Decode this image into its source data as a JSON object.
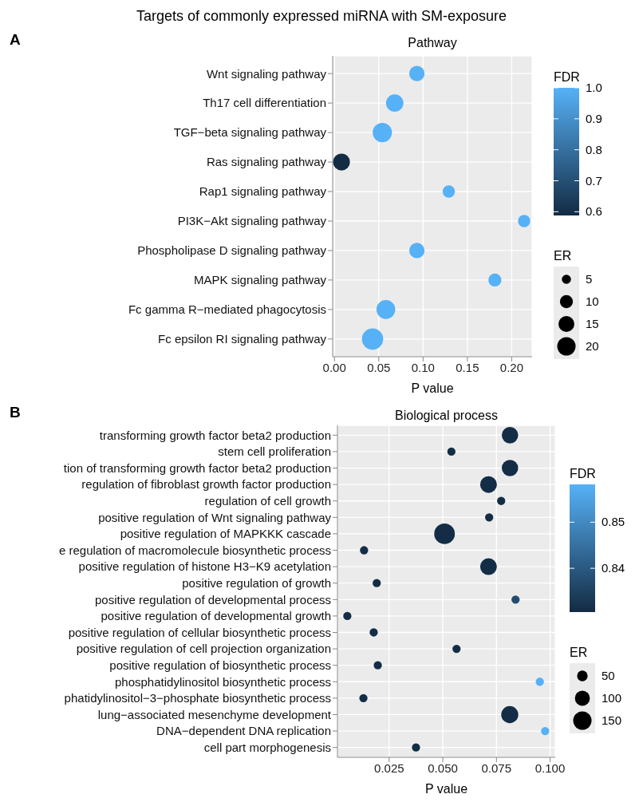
{
  "chart_data": [
    {
      "type": "bubble",
      "title": "Targets of commonly expressed miRNA with SM-exposure",
      "subtitle": "Pathway",
      "annotations": [
        "A"
      ],
      "xlabel": "P value",
      "orientation": "horizontal",
      "categories": [
        "Wnt signaling pathway",
        "Th17 cell differentiation",
        "TGF−beta signaling pathway",
        "Ras signaling pathway",
        "Rap1 signaling pathway",
        "PI3K−Akt signaling pathway",
        "Phospholipase D signaling pathway",
        "MAPK signaling pathway",
        "Fc gamma R−mediated phagocytosis",
        "Fc epsilon RI signaling pathway"
      ],
      "series": [
        {
          "values": [
            0.093,
            0.068,
            0.054,
            0.008,
            0.129,
            0.214,
            0.093,
            0.181,
            0.058,
            0.043
          ],
          "sizes": [
            14,
            18,
            22,
            17,
            9,
            9,
            14,
            10,
            21,
            27
          ],
          "cvalues": [
            1.0,
            1.0,
            1.0,
            0.59,
            1.0,
            1.0,
            1.0,
            1.0,
            1.0,
            1.0
          ]
        }
      ],
      "xlim": [
        -0.002,
        0.223
      ],
      "xticks": [
        {
          "value": 0,
          "label": "0.00"
        },
        0.05,
        {
          "value": 0.1,
          "label": "0.10"
        },
        0.15,
        {
          "value": 0.2,
          "label": "0.20"
        }
      ],
      "clabel": "FDR",
      "clim": [
        0.588,
        1.0
      ],
      "cticks": [
        {
          "value": 1.0,
          "label": "1.0"
        },
        0.9,
        0.8,
        0.7,
        0.6
      ],
      "legend_title": "ER",
      "size_legend": [
        5,
        10,
        15,
        20
      ],
      "grid": true
    },
    {
      "type": "bubble",
      "title": "Biological process",
      "annotations": [
        "B"
      ],
      "xlabel": "P value",
      "orientation": "horizontal",
      "categories": [
        "transforming growth factor beta2 production",
        "stem cell proliferation",
        "tion of transforming growth factor beta2 production",
        "regulation of fibroblast growth factor production",
        "regulation of cell growth",
        "positive regulation of Wnt signaling pathway",
        "positive regulation of MAPKKK cascade",
        "e regulation of macromolecule biosynthetic process",
        "positive regulation of histone H3−K9 acetylation",
        "positive regulation of growth",
        "positive regulation of developmental process",
        "positive regulation of developmental growth",
        "positive regulation of cellular biosynthetic process",
        "positive regulation of cell projection organization",
        "positive regulation of biosynthetic process",
        "phosphatidylinositol biosynthetic process",
        "phatidylinositol−3−phosphate biosynthetic process",
        "lung−associated mesenchyme development",
        "DNA−dependent DNA replication",
        "cell part morphogenesis"
      ],
      "series": [
        {
          "values": [
            0.0813,
            0.054,
            0.0813,
            0.0713,
            0.0772,
            0.0716,
            0.0508,
            0.0133,
            0.0713,
            0.0192,
            0.0839,
            0.0055,
            0.0178,
            0.0564,
            0.0197,
            0.0952,
            0.013,
            0.0812,
            0.0977,
            0.0375
          ],
          "sizes": [
            120,
            30,
            120,
            125,
            30,
            30,
            190,
            30,
            125,
            30,
            30,
            30,
            30,
            30,
            30,
            30,
            30,
            130,
            30,
            30
          ],
          "cvalues": [
            0.831,
            0.831,
            0.831,
            0.831,
            0.831,
            0.831,
            0.831,
            0.831,
            0.831,
            0.831,
            0.8374,
            0.831,
            0.831,
            0.831,
            0.831,
            0.858,
            0.831,
            0.831,
            0.858,
            0.831
          ]
        }
      ],
      "xlim": [
        0.0009,
        0.1024
      ],
      "xticks": [
        0.025,
        {
          "value": 0.05,
          "label": "0.050"
        },
        0.075,
        {
          "value": 0.1,
          "label": "0.100"
        }
      ],
      "clabel": "FDR",
      "clim": [
        0.8305,
        0.8582
      ],
      "cticks": [
        0.85,
        0.84
      ],
      "legend_title": "ER",
      "size_legend": [
        50,
        100,
        150
      ],
      "grid": true
    }
  ]
}
